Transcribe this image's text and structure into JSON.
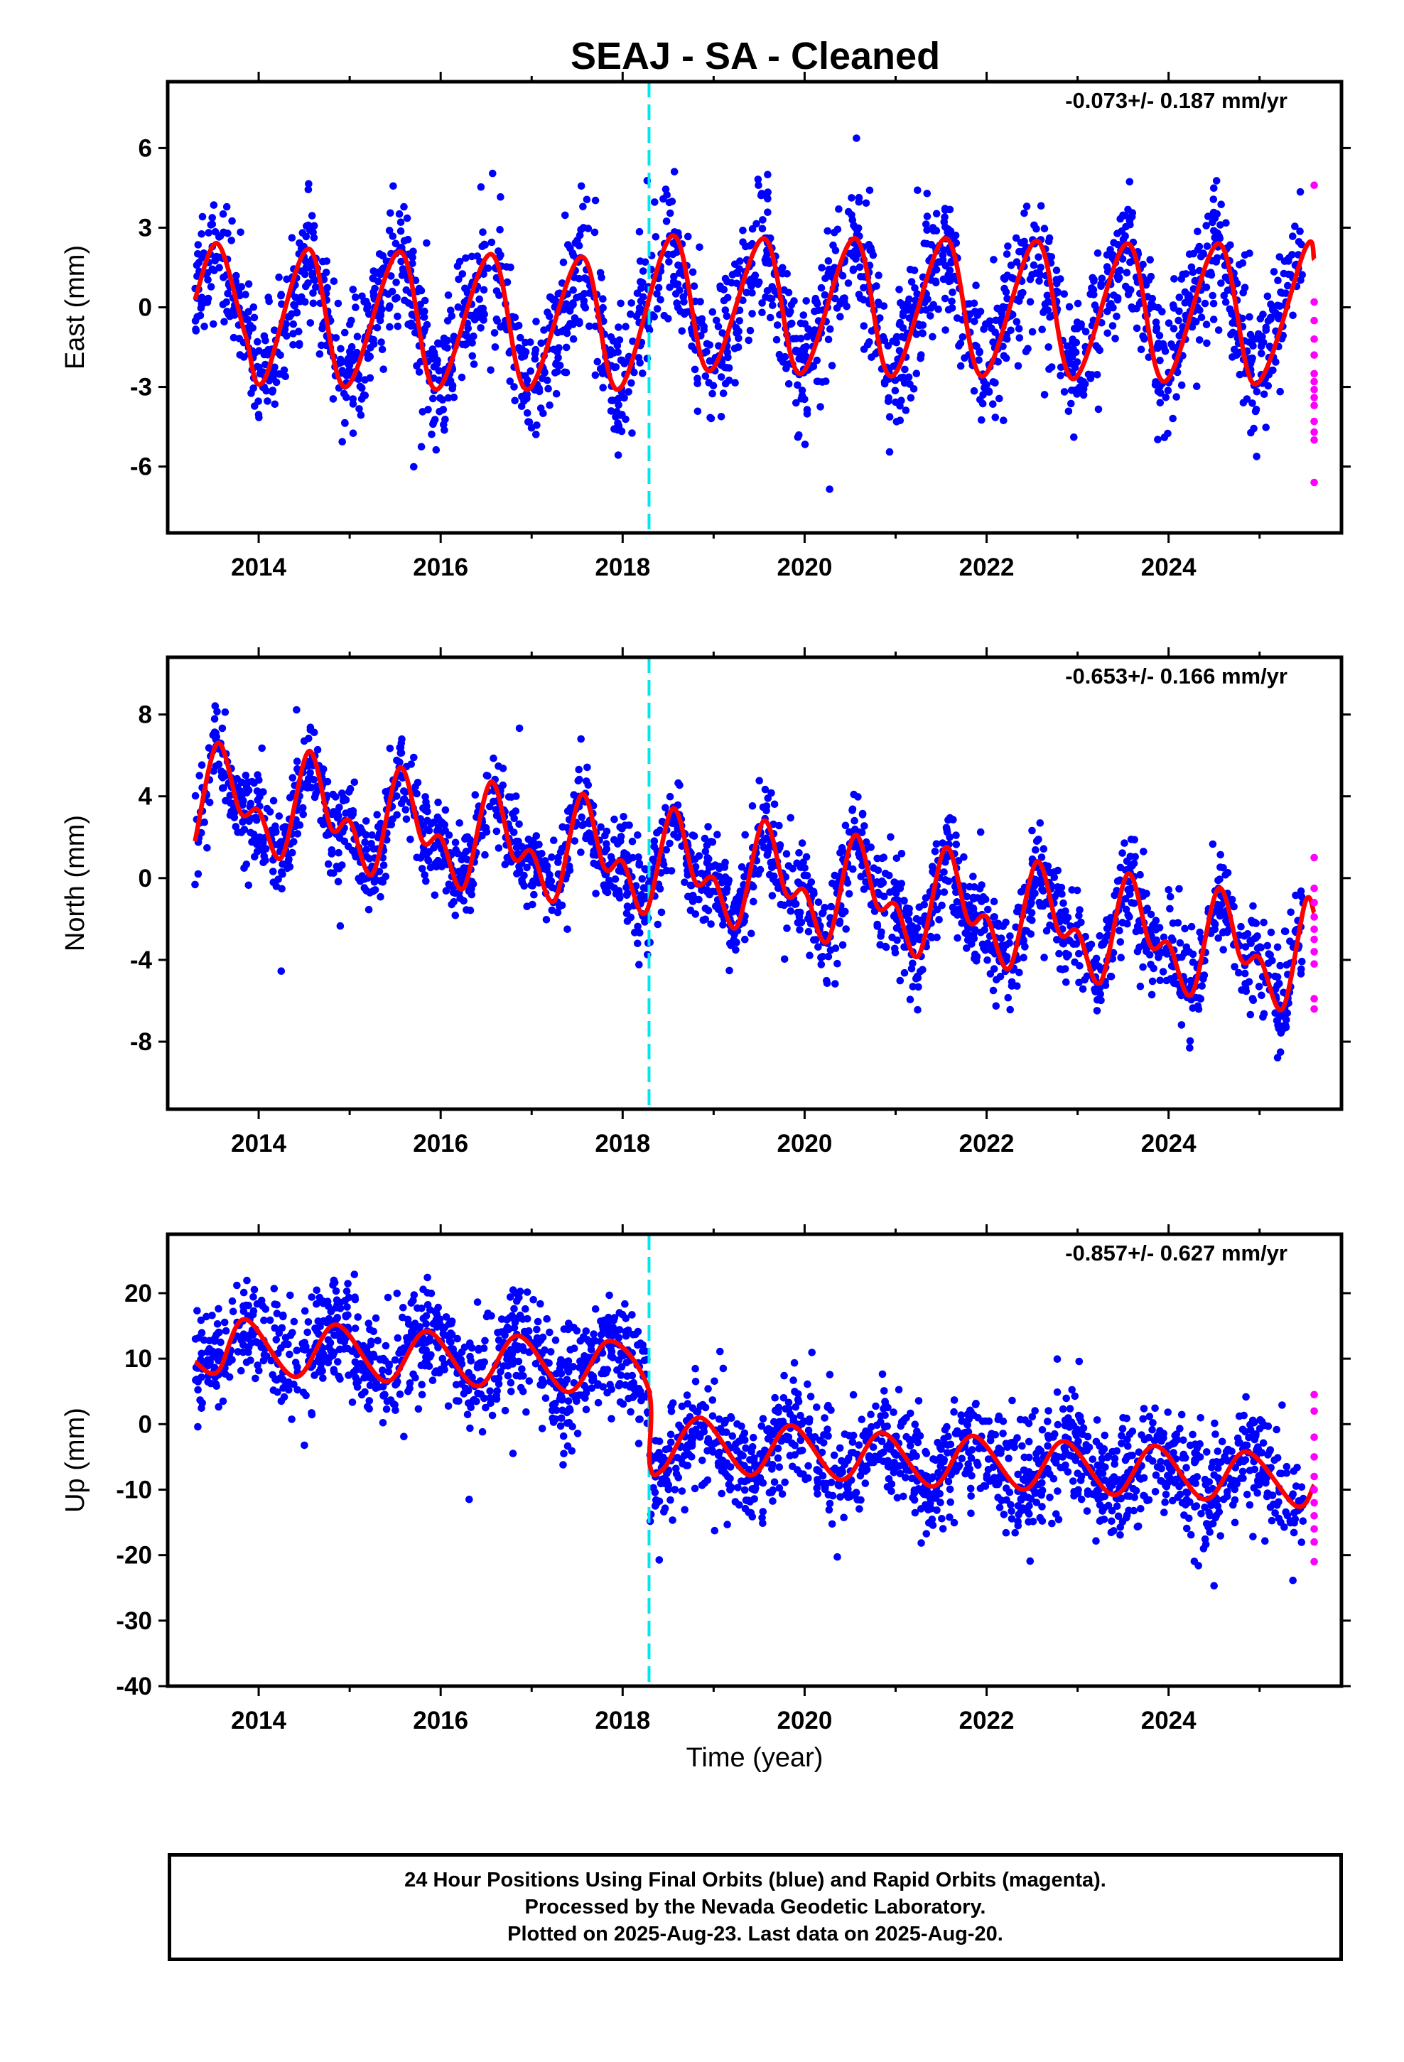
{
  "title": "SEAJ  - SA - Cleaned",
  "x_axis": {
    "label": "Time (year)",
    "range": [
      2013.0,
      2025.9
    ],
    "ticks": [
      2014,
      2016,
      2018,
      2020,
      2022,
      2024
    ],
    "tick_labels": [
      "2014",
      "2016",
      "2018",
      "2020",
      "2022",
      "2024"
    ]
  },
  "colors": {
    "final_orbits": "#0000ff",
    "rapid_orbits": "#ff00ff",
    "model_fit": "#ff0000",
    "offset_marker": "#00e5ee"
  },
  "footer": {
    "line1": "24 Hour Positions Using Final Orbits (blue) and Rapid Orbits (magenta).",
    "line2": "Processed by the Nevada Geodetic Laboratory.",
    "line3": "Plotted on 2025-Aug-23. Last data on 2025-Aug-20."
  },
  "chart_data": [
    {
      "type": "scatter",
      "component": "east",
      "ylabel": "East (mm)",
      "rate_text": "-0.073+/- 0.187 mm/yr",
      "ylim": [
        -8.5,
        8.5
      ],
      "yticks": [
        6,
        3,
        0,
        -3,
        -6
      ],
      "ytick_labels": [
        "6",
        "3",
        "0",
        "-3",
        "-6"
      ],
      "offset_year": 2018.29,
      "series": [
        {
          "kind": "final_orbits_scatter",
          "x_start": 2013.3,
          "x_end": 2025.48,
          "trend": -0.073,
          "offset_mm": 0
        },
        {
          "kind": "model_curve",
          "x": [
            2013.3,
            2013.55,
            2013.85,
            2014.05,
            2014.55,
            2014.95,
            2015.55,
            2015.95,
            2016.55,
            2016.95,
            2017.55,
            2017.95,
            2018.55,
            2018.95,
            2019.55,
            2019.95,
            2020.55,
            2020.95,
            2021.55,
            2021.95,
            2022.55,
            2022.95,
            2023.55,
            2023.95,
            2024.55,
            2024.95,
            2025.5,
            2025.6
          ],
          "y": [
            0.3,
            2.4,
            -1.0,
            -2.8,
            2.2,
            -3.0,
            2.1,
            -3.1,
            2.0,
            -3.1,
            1.9,
            -3.1,
            2.7,
            -2.4,
            2.6,
            -2.5,
            2.6,
            -2.6,
            2.6,
            -2.6,
            2.5,
            -2.7,
            2.4,
            -2.8,
            2.4,
            -2.9,
            2.2,
            1.8
          ]
        },
        {
          "kind": "rapid_orbits",
          "x": 2025.6,
          "y": [
            4.6,
            0.2,
            -0.5,
            -1.2,
            -1.8,
            -2.5,
            -2.8,
            -3.1,
            -3.4,
            -3.7,
            -4.3,
            -4.7,
            -5.0,
            -6.6
          ]
        }
      ]
    },
    {
      "type": "scatter",
      "component": "north",
      "ylabel": "North (mm)",
      "rate_text": "-0.653+/- 0.166 mm/yr",
      "ylim": [
        -11.3,
        10.8
      ],
      "yticks": [
        8,
        4,
        0,
        -4,
        -8
      ],
      "ytick_labels": [
        "8",
        "4",
        "0",
        "-4",
        "-8"
      ],
      "offset_year": 2018.29,
      "series": [
        {
          "kind": "final_orbits_scatter",
          "x_start": 2013.3,
          "x_end": 2025.48,
          "trend": -0.653,
          "offset_mm": 0
        },
        {
          "kind": "model_curve",
          "x": [
            2013.3,
            2013.55,
            2013.8,
            2014.0,
            2014.25,
            2014.55,
            2014.8,
            2015.0,
            2015.25,
            2015.55,
            2015.8,
            2016.0,
            2016.25,
            2016.55,
            2016.8,
            2017.0,
            2017.25,
            2017.55,
            2017.8,
            2018.0,
            2018.25,
            2018.55,
            2018.8,
            2019.0,
            2019.25,
            2019.55,
            2019.8,
            2020.0,
            2020.25,
            2020.55,
            2020.8,
            2021.0,
            2021.25,
            2021.55,
            2021.8,
            2022.0,
            2022.25,
            2022.55,
            2022.8,
            2023.0,
            2023.25,
            2023.55,
            2023.8,
            2024.0,
            2024.25,
            2024.55,
            2024.8,
            2025.0,
            2025.25,
            2025.5,
            2025.6
          ],
          "y": [
            1.8,
            6.6,
            3.2,
            3.3,
            1.0,
            6.2,
            2.4,
            2.8,
            0.2,
            5.4,
            1.8,
            2.0,
            -0.5,
            4.7,
            1.0,
            1.3,
            -1.1,
            4.1,
            0.5,
            0.8,
            -1.7,
            3.4,
            -0.2,
            0.0,
            -2.4,
            2.8,
            -0.8,
            -0.6,
            -3.1,
            2.1,
            -1.4,
            -1.3,
            -3.8,
            1.5,
            -2.1,
            -1.9,
            -4.4,
            0.8,
            -2.7,
            -2.6,
            -5.1,
            0.2,
            -3.3,
            -3.2,
            -5.7,
            -0.5,
            -4.0,
            -3.9,
            -6.4,
            -1.2,
            -1.7
          ]
        },
        {
          "kind": "rapid_orbits",
          "x": 2025.6,
          "y": [
            1.0,
            -0.5,
            -1.2,
            -1.9,
            -2.5,
            -3.0,
            -3.6,
            -4.2,
            -5.9,
            -6.4
          ]
        }
      ]
    },
    {
      "type": "scatter",
      "component": "up",
      "ylabel": "Up (mm)",
      "rate_text": "-0.857+/- 0.627 mm/yr",
      "ylim": [
        -40,
        29
      ],
      "yticks": [
        20,
        10,
        0,
        -10,
        -20,
        -30,
        -40
      ],
      "ytick_labels": [
        "20",
        "10",
        "0",
        "-10",
        "-20",
        "-30",
        "-40"
      ],
      "offset_year": 2018.29,
      "series": [
        {
          "kind": "final_orbits_scatter",
          "x_start": 2013.3,
          "x_end": 2025.48,
          "trend": -0.857,
          "offset_mm": -12.5
        },
        {
          "kind": "model_curve",
          "x": [
            2013.3,
            2013.55,
            2013.85,
            2014.4,
            2014.85,
            2015.4,
            2015.85,
            2016.4,
            2016.85,
            2017.4,
            2017.85,
            2018.28,
            2018.3,
            2018.45,
            2018.85,
            2019.4,
            2019.85,
            2020.4,
            2020.85,
            2021.4,
            2021.85,
            2022.4,
            2022.85,
            2023.4,
            2023.85,
            2024.4,
            2024.85,
            2025.4,
            2025.6
          ],
          "y": [
            9.5,
            8.0,
            16.0,
            7.2,
            15.2,
            6.5,
            14.2,
            5.8,
            13.5,
            4.9,
            12.7,
            5.5,
            -6.3,
            -6.8,
            1.0,
            -7.8,
            -0.2,
            -8.5,
            -1.3,
            -9.5,
            -1.8,
            -10.0,
            -2.6,
            -10.8,
            -3.3,
            -11.5,
            -4.2,
            -12.5,
            -9.3
          ]
        },
        {
          "kind": "rapid_orbits",
          "x": 2025.6,
          "y": [
            4.5,
            2.0,
            -2.0,
            -5.0,
            -8.0,
            -10.0,
            -12.0,
            -14.0,
            -16.0,
            -18.0,
            -21.0
          ]
        }
      ]
    }
  ]
}
